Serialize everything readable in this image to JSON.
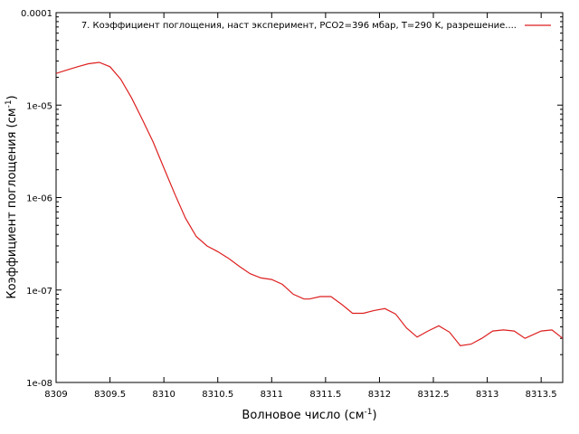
{
  "chart_data": {
    "type": "line",
    "xlabel": "Волновое число (см",
    "xlabel_sup": "-1",
    "xlabel_close": ")",
    "ylabel": "Коэффициент поглощения (см",
    "ylabel_sup": "-1",
    "ylabel_close": ")",
    "xlim": [
      8309,
      8313.7
    ],
    "ylim": [
      1e-08,
      0.0001
    ],
    "yscale": "log",
    "grid": false,
    "legend_position": "top-right",
    "x_ticks": [
      8309,
      8309.5,
      8310,
      8310.5,
      8311,
      8311.5,
      8312,
      8312.5,
      8313,
      8313.5
    ],
    "x_tick_labels": [
      "8309",
      "8309.5",
      "8310",
      "8310.5",
      "8311",
      "8311.5",
      "8312",
      "8312.5",
      "8313",
      "8313.5"
    ],
    "y_ticks": [
      1e-08,
      1e-07,
      1e-06,
      1e-05,
      0.0001
    ],
    "y_tick_labels": [
      "1e-08",
      "1e-07",
      "1e-06",
      "1e-05",
      "0.0001"
    ],
    "colors": {
      "series": "#dd1f1f",
      "axes": "#000000"
    },
    "series": [
      {
        "name": "7. Коэффициент поглощения, наст эксперимент, PCO2=396 мбар, T=290 K, разрешение....",
        "x": [
          8309.0,
          8309.1,
          8309.2,
          8309.3,
          8309.4,
          8309.5,
          8309.6,
          8309.7,
          8309.8,
          8309.9,
          8310.0,
          8310.1,
          8310.2,
          8310.3,
          8310.4,
          8310.5,
          8310.6,
          8310.7,
          8310.8,
          8310.9,
          8311.0,
          8311.1,
          8311.2,
          8311.3,
          8311.35,
          8311.45,
          8311.55,
          8311.65,
          8311.75,
          8311.85,
          8311.95,
          8312.05,
          8312.15,
          8312.25,
          8312.35,
          8312.45,
          8312.55,
          8312.65,
          8312.75,
          8312.85,
          8312.95,
          8313.05,
          8313.15,
          8313.25,
          8313.35,
          8313.5,
          8313.6,
          8313.7
        ],
        "values": [
          2.2e-05,
          2.4e-05,
          2.6e-05,
          2.8e-05,
          2.9e-05,
          2.6e-05,
          1.9e-05,
          1.2e-05,
          7e-06,
          4e-06,
          2.1e-06,
          1.1e-06,
          6e-07,
          3.8e-07,
          3e-07,
          2.6e-07,
          2.2e-07,
          1.8e-07,
          1.5e-07,
          1.35e-07,
          1.3e-07,
          1.15e-07,
          9e-08,
          8e-08,
          8e-08,
          8.5e-08,
          8.5e-08,
          7e-08,
          5.6e-08,
          5.6e-08,
          6e-08,
          6.3e-08,
          5.5e-08,
          3.9e-08,
          3.1e-08,
          3.6e-08,
          4.1e-08,
          3.5e-08,
          2.5e-08,
          2.6e-08,
          3e-08,
          3.6e-08,
          3.7e-08,
          3.6e-08,
          3e-08,
          3.6e-08,
          3.7e-08,
          3e-08
        ]
      }
    ]
  }
}
